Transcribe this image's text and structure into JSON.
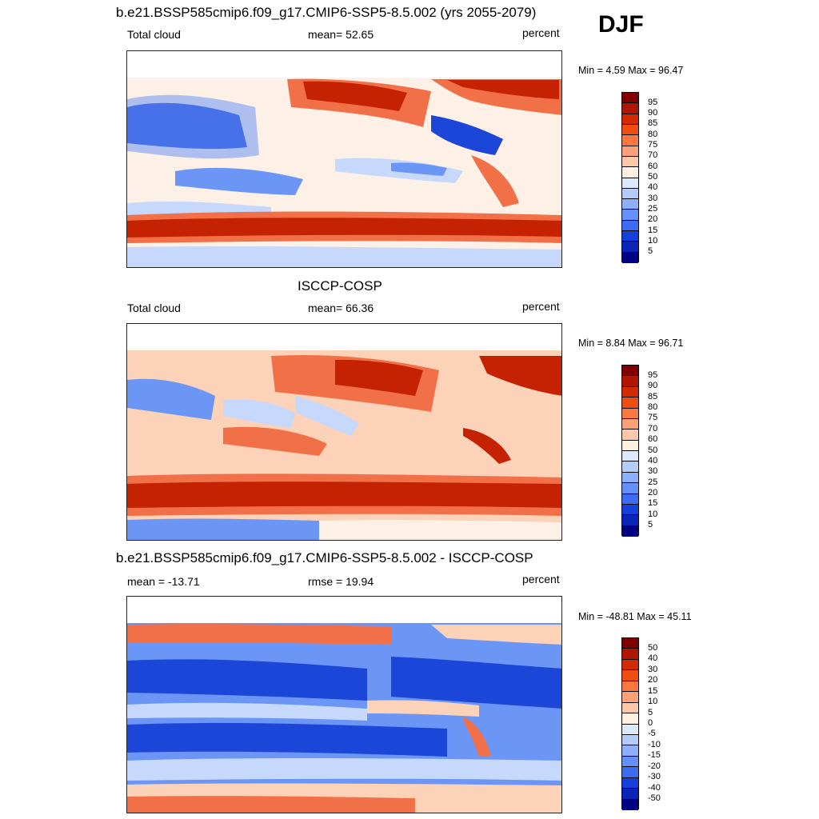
{
  "season": "DJF",
  "panels": [
    {
      "title": "b.e21.BSSP585cmip6.f09_g17.CMIP6-SSP5-8.5.002 (yrs 2055-2079)",
      "left_label": "Total cloud",
      "center_label": "mean=  52.65",
      "right_label": "percent",
      "minmax": "Min =    4.59 Max =  96.47",
      "colorbar": {
        "labels": [
          "95",
          "90",
          "85",
          "80",
          "75",
          "70",
          "60",
          "50",
          "40",
          "30",
          "25",
          "20",
          "15",
          "10",
          "5"
        ],
        "colors": [
          "#800000",
          "#b01500",
          "#d42a00",
          "#f04d10",
          "#fa7840",
          "#fca078",
          "#fcc8a8",
          "#fff0e0",
          "#dce8fc",
          "#b4ccfc",
          "#8cb0fc",
          "#6490fc",
          "#3c6cf4",
          "#1440dc",
          "#0a24b8",
          "#000082"
        ]
      },
      "fill_colors": {
        "high": "#c42200",
        "mid_high": "#f27048",
        "mid": "#fcd2b8",
        "neutral": "#fdf0e6",
        "mid_low": "#c6d8fc",
        "low": "#6c96f6",
        "very_low": "#1c46d8"
      }
    },
    {
      "title": "ISCCP-COSP",
      "left_label": "Total cloud",
      "center_label": "mean=  66.36",
      "right_label": "percent",
      "minmax": "Min =    8.84 Max =  96.71",
      "colorbar": {
        "labels": [
          "95",
          "90",
          "85",
          "80",
          "75",
          "70",
          "60",
          "50",
          "40",
          "30",
          "25",
          "20",
          "15",
          "10",
          "5"
        ],
        "colors": [
          "#800000",
          "#b01500",
          "#d42a00",
          "#f04d10",
          "#fa7840",
          "#fca078",
          "#fcc8a8",
          "#fff0e0",
          "#dce8fc",
          "#b4ccfc",
          "#8cb0fc",
          "#6490fc",
          "#3c6cf4",
          "#1440dc",
          "#0a24b8",
          "#000082"
        ]
      }
    },
    {
      "title": "b.e21.BSSP585cmip6.f09_g17.CMIP6-SSP5-8.5.002 - ISCCP-COSP",
      "left_label": "mean = -13.71",
      "center_label": "rmse =  19.94",
      "right_label": "percent",
      "minmax": "Min = -48.81 Max =  45.11",
      "colorbar": {
        "labels": [
          "50",
          "40",
          "30",
          "20",
          "15",
          "10",
          "5",
          "0",
          "-5",
          "-10",
          "-15",
          "-20",
          "-30",
          "-40",
          "-50"
        ],
        "colors": [
          "#800000",
          "#b01500",
          "#d42a00",
          "#f04d10",
          "#fa7840",
          "#fca078",
          "#fcc8a8",
          "#fff0e0",
          "#dce8fc",
          "#b4ccfc",
          "#8cb0fc",
          "#6490fc",
          "#3c6cf4",
          "#1440dc",
          "#0a24b8",
          "#000082"
        ]
      }
    }
  ]
}
